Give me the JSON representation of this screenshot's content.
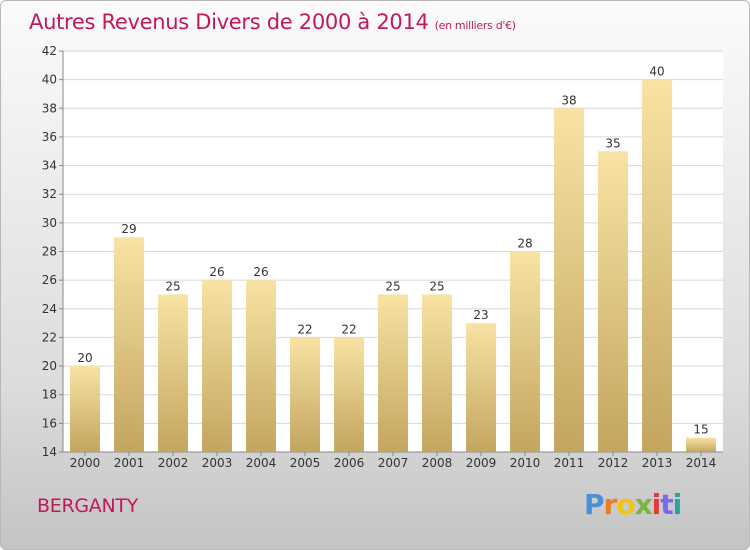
{
  "title": "Autres Revenus Divers de 2000 à 2014",
  "unit_label": "(en milliers d'€)",
  "commune": "BERGANTY",
  "logo": {
    "text": "Proxiti",
    "colors": [
      "#4a90d9",
      "#e67e22",
      "#f1c40f",
      "#7cb342",
      "#e53935",
      "#7b68ee",
      "#26a69a"
    ]
  },
  "colors": {
    "title": "#c2185b",
    "bar_top": "#f8e3a4",
    "bar_bottom": "#c3a55e"
  },
  "chart_data": {
    "type": "bar",
    "categories": [
      "2000",
      "2001",
      "2002",
      "2003",
      "2004",
      "2005",
      "2006",
      "2007",
      "2008",
      "2009",
      "2010",
      "2011",
      "2012",
      "2013",
      "2014"
    ],
    "values": [
      20,
      29,
      25,
      26,
      26,
      22,
      22,
      25,
      25,
      23,
      28,
      38,
      35,
      40,
      15
    ],
    "ylim": [
      14,
      42
    ],
    "yticks": [
      14,
      16,
      18,
      20,
      22,
      24,
      26,
      28,
      30,
      32,
      34,
      36,
      38,
      40,
      42
    ],
    "grid": true,
    "legend": "none"
  }
}
